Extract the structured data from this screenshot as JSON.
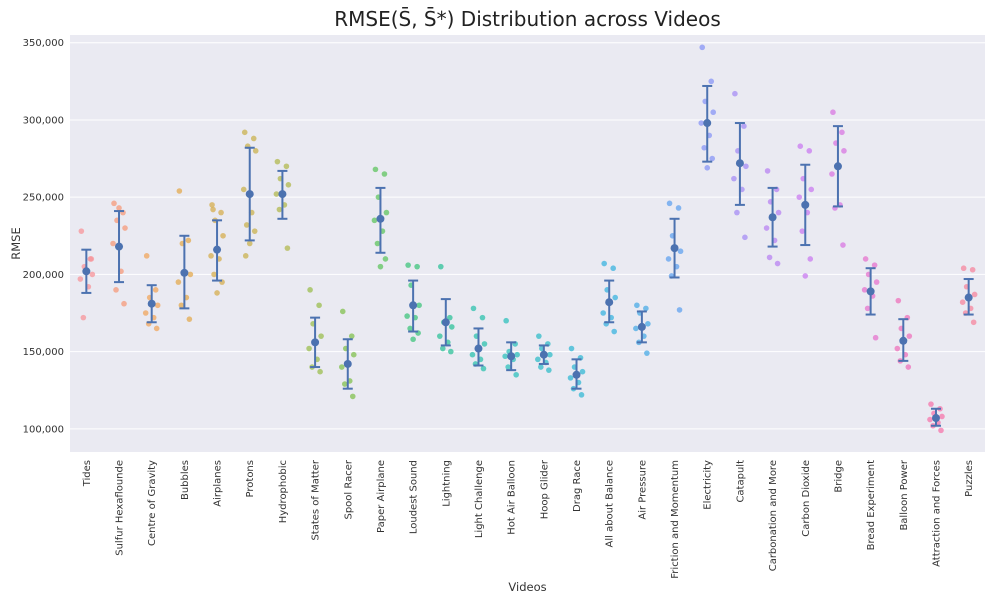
{
  "chart_data": {
    "type": "scatter",
    "title": "RMSE(S̄, S̄*) Distribution across Videos",
    "xlabel": "Videos",
    "ylabel": "RMSE",
    "ylim": [
      85000,
      355000
    ],
    "yticks": [
      100000,
      150000,
      200000,
      250000,
      300000,
      350000
    ],
    "ytick_labels": [
      "100,000",
      "150,000",
      "200,000",
      "250,000",
      "300,000",
      "350,000"
    ],
    "grid": true,
    "background": "#eaeaf2",
    "mean_color": "#4c72b0",
    "categories": [
      "Tides",
      "Sulfur Hexaflounde",
      "Centre of Gravity",
      "Bubbles",
      "Airplanes",
      "Protons",
      "Hydrophobic",
      "States of Matter",
      "Spool Racer",
      "Paper Airplane",
      "Loudest Sound",
      "Lightning",
      "Light Challenge",
      "Hot Air Balloon",
      "Hoop Glider",
      "Drag Race",
      "All about Balance",
      "Air Pressure",
      "Friction and Momentum",
      "Electricity",
      "Catapult",
      "Carbonation and More",
      "Carbon Dioxide",
      "Bridge",
      "Bread Experiment",
      "Balloon Power",
      "Attraction and Forces",
      "Puzzles"
    ],
    "colors": [
      "#f7949a",
      "#f59a7a",
      "#f0a55c",
      "#e3a94f",
      "#d6ae4f",
      "#cab24f",
      "#b2b84f",
      "#9bbd4f",
      "#82c04f",
      "#5fc45f",
      "#3fc47c",
      "#2fc29a",
      "#2ec2ad",
      "#2fc0bc",
      "#31bcc8",
      "#34b8d4",
      "#3ab3df",
      "#49abe6",
      "#60a2ef",
      "#8896f5",
      "#a68cf4",
      "#b883f2",
      "#c97bf0",
      "#d877e2",
      "#e673cd",
      "#ee72bb",
      "#f675ab",
      "#f6859d"
    ],
    "means": [
      202000,
      218000,
      181000,
      201000,
      216000,
      252000,
      252000,
      156000,
      142000,
      236000,
      180000,
      169000,
      152000,
      147000,
      148000,
      135000,
      182000,
      166000,
      217000,
      298000,
      272000,
      237000,
      245000,
      270000,
      189000,
      157000,
      107000,
      185000
    ],
    "ci_low": [
      188000,
      195000,
      169000,
      178000,
      196000,
      222000,
      236000,
      140000,
      126000,
      214000,
      163000,
      154000,
      141000,
      138000,
      142000,
      126000,
      169000,
      156000,
      198000,
      273000,
      245000,
      218000,
      219000,
      244000,
      174000,
      144000,
      102000,
      174000
    ],
    "ci_high": [
      216000,
      241000,
      193000,
      225000,
      235000,
      282000,
      267000,
      172000,
      158000,
      256000,
      196000,
      184000,
      165000,
      156000,
      154000,
      145000,
      196000,
      176000,
      236000,
      322000,
      298000,
      256000,
      271000,
      296000,
      204000,
      171000,
      113000,
      197000
    ],
    "points": [
      [
        228000,
        210000,
        205000,
        200000,
        197000,
        192000,
        172000,
        210000
      ],
      [
        246000,
        240000,
        235000,
        230000,
        220000,
        202000,
        190000,
        181000,
        243000
      ],
      [
        212000,
        190000,
        185000,
        180000,
        175000,
        172000,
        168000,
        165000
      ],
      [
        254000,
        222000,
        220000,
        200000,
        195000,
        185000,
        180000,
        171000
      ],
      [
        245000,
        240000,
        235000,
        225000,
        212000,
        210000,
        200000,
        195000,
        188000,
        242000
      ],
      [
        292000,
        288000,
        283000,
        280000,
        255000,
        240000,
        232000,
        228000,
        220000,
        212000
      ],
      [
        273000,
        270000,
        262000,
        258000,
        252000,
        245000,
        242000,
        217000
      ],
      [
        190000,
        180000,
        168000,
        160000,
        152000,
        145000,
        140000,
        137000
      ],
      [
        176000,
        160000,
        152000,
        148000,
        140000,
        131000,
        129000,
        121000
      ],
      [
        268000,
        265000,
        250000,
        240000,
        235000,
        228000,
        220000,
        210000,
        205000
      ],
      [
        206000,
        205000,
        193000,
        180000,
        173000,
        172000,
        165000,
        162000,
        158000
      ],
      [
        205000,
        172000,
        169000,
        166000,
        160000,
        156000,
        152000,
        150000
      ],
      [
        178000,
        172000,
        160000,
        155000,
        148000,
        145000,
        142000,
        139000
      ],
      [
        170000,
        155000,
        150000,
        148000,
        147000,
        145000,
        140000,
        135000
      ],
      [
        160000,
        155000,
        152000,
        148000,
        145000,
        143000,
        140000,
        138000
      ],
      [
        152000,
        146000,
        140000,
        137000,
        133000,
        130000,
        126000,
        122000
      ],
      [
        207000,
        204000,
        190000,
        185000,
        175000,
        172000,
        168000,
        163000
      ],
      [
        180000,
        178000,
        175000,
        168000,
        165000,
        160000,
        156000,
        149000
      ],
      [
        246000,
        243000,
        225000,
        215000,
        210000,
        205000,
        199000,
        177000
      ],
      [
        347000,
        325000,
        312000,
        305000,
        298000,
        290000,
        282000,
        275000,
        269000
      ],
      [
        317000,
        296000,
        280000,
        270000,
        262000,
        255000,
        240000,
        224000
      ],
      [
        267000,
        255000,
        247000,
        240000,
        230000,
        222000,
        211000,
        207000
      ],
      [
        283000,
        280000,
        262000,
        255000,
        250000,
        240000,
        228000,
        210000,
        199000
      ],
      [
        305000,
        292000,
        285000,
        280000,
        265000,
        245000,
        243000,
        219000
      ],
      [
        210000,
        206000,
        200000,
        195000,
        190000,
        186000,
        178000,
        159000
      ],
      [
        183000,
        172000,
        165000,
        160000,
        152000,
        148000,
        144000,
        140000
      ],
      [
        116000,
        113000,
        110000,
        108000,
        106000,
        104000,
        102000,
        99000
      ],
      [
        204000,
        203000,
        192000,
        187000,
        182000,
        178000,
        175000,
        169000
      ]
    ]
  }
}
